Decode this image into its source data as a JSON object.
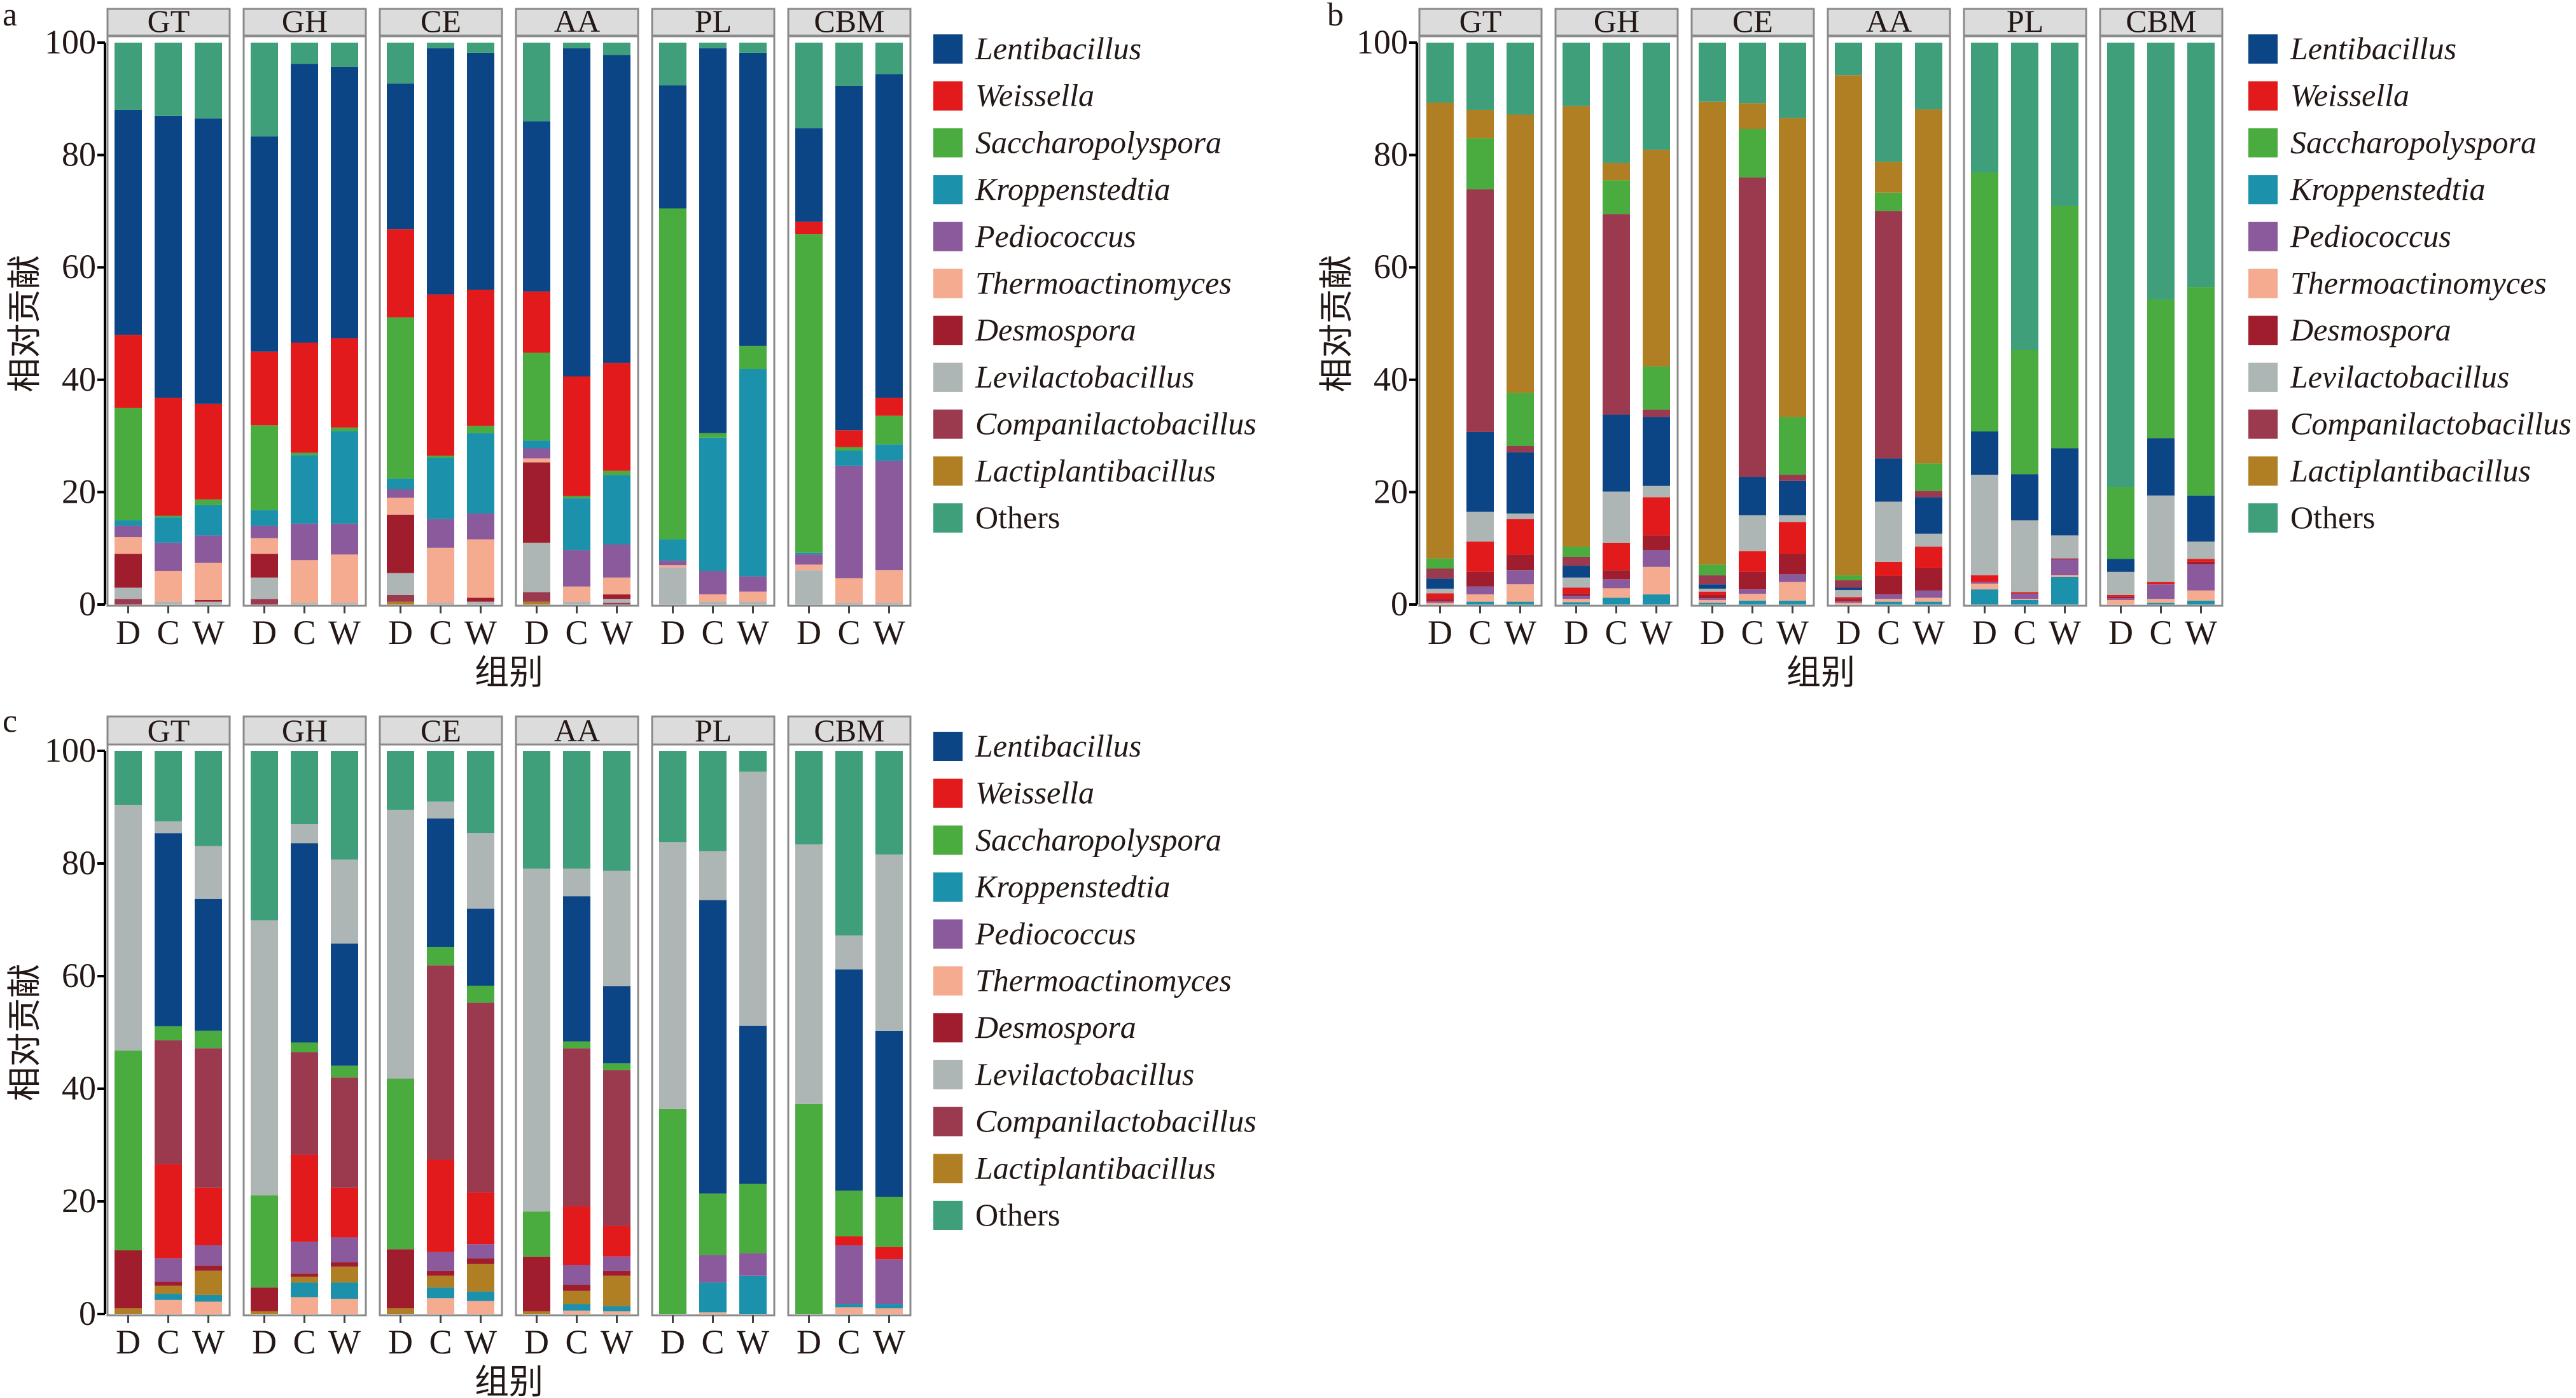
{
  "categories": [
    "Lentibacillus",
    "Weissella",
    "Saccharopolyspora",
    "Kroppenstedtia",
    "Pediococcus",
    "Thermoactinomyces",
    "Desmospora",
    "Levilactobacillus",
    "Companilactobacillus",
    "Lactiplantibacillus",
    "Others"
  ],
  "colors": {
    "Lentibacillus": "#0b4586",
    "Weissella": "#e31a1c",
    "Saccharopolyspora": "#4aab3f",
    "Kroppenstedtia": "#1b91ab",
    "Pediococcus": "#8a5a9c",
    "Thermoactinomyces": "#f5ab8f",
    "Desmospora": "#a01d2d",
    "Levilactobacillus": "#aeb5b5",
    "Companilactobacillus": "#9b3a4f",
    "Lactiplantibacillus": "#b07f23",
    "Others": "#3f9f7a"
  },
  "chart_data": [
    {
      "panel": "a",
      "type": "bar",
      "stacked": true,
      "legend": "right",
      "ylabel": "相对贡献",
      "xlabel": "组别",
      "ylim": [
        0,
        100
      ],
      "yticks": [
        0,
        20,
        40,
        60,
        80,
        100
      ],
      "facets": [
        "GT",
        "GH",
        "CE",
        "AA",
        "PL",
        "CBM"
      ],
      "groups": [
        "D",
        "C",
        "W"
      ],
      "stack_order": [
        "Lactiplantibacillus",
        "Companilactobacillus",
        "Levilactobacillus",
        "Desmospora",
        "Thermoactinomyces",
        "Pediococcus",
        "Kroppenstedtia",
        "Saccharopolyspora",
        "Weissella",
        "Lentibacillus",
        "Others"
      ],
      "values": {
        "GT": {
          "D": [
            0,
            1,
            2,
            6,
            3,
            2,
            1,
            20,
            13,
            40,
            12
          ],
          "C": [
            0,
            0,
            0.5,
            0,
            5.5,
            5,
            4.5,
            0.3,
            21,
            50.2,
            13
          ],
          "W": [
            0,
            0,
            0.5,
            0.3,
            6.6,
            4.9,
            5.4,
            1,
            17,
            50.8,
            13.5
          ]
        },
        "GH": {
          "D": [
            0,
            1,
            3.8,
            4.2,
            2.8,
            2.2,
            2.8,
            15.1,
            13.1,
            38.3,
            16.7
          ],
          "C": [
            0,
            0,
            0.3,
            0,
            7.6,
            6.5,
            12.2,
            0.4,
            19.6,
            49.6,
            3.8
          ],
          "W": [
            0,
            0,
            0.3,
            0,
            8.6,
            5.5,
            16.5,
            0.6,
            15.9,
            48.3,
            4.3
          ]
        },
        "CE": {
          "D": [
            0.5,
            1.2,
            3.9,
            10.4,
            3,
            1.5,
            1.9,
            28.7,
            15.7,
            25.9,
            7.3
          ],
          "C": [
            0,
            0,
            0.3,
            0,
            9.8,
            5.1,
            10.9,
            0.4,
            28.7,
            43.8,
            1
          ],
          "W": [
            0,
            0,
            0.5,
            0.7,
            10.4,
            4.6,
            14.3,
            1.3,
            24.2,
            42.2,
            1.8
          ]
        },
        "AA": {
          "D": [
            0.5,
            1.7,
            8.8,
            14.3,
            0.7,
            1.8,
            1.4,
            15.6,
            10.9,
            30.3,
            14
          ],
          "C": [
            0,
            0,
            0.5,
            0,
            2.7,
            6.5,
            9.2,
            0.4,
            21.3,
            58.4,
            1
          ],
          "W": [
            0,
            0.3,
            0.7,
            0.8,
            3,
            5.9,
            12.3,
            0.8,
            19.2,
            54.8,
            2.2
          ]
        },
        "PL": {
          "D": [
            0,
            0,
            6.6,
            0,
            0.4,
            0.8,
            3.8,
            58.9,
            0,
            21.9,
            7.6
          ],
          "C": [
            0,
            0,
            0.5,
            0,
            1.3,
            4.2,
            23.7,
            0.8,
            0,
            68.5,
            1
          ],
          "W": [
            0,
            0,
            0.5,
            0,
            1.8,
            2.7,
            36.9,
            4.1,
            0,
            52.2,
            1.8
          ]
        },
        "CBM": {
          "D": [
            0,
            0,
            6.1,
            0,
            1,
            1.8,
            0.3,
            56.7,
            2.2,
            16.7,
            15.2
          ],
          "C": [
            0,
            0,
            0.3,
            0,
            4.4,
            20,
            2.7,
            0.6,
            3,
            61.3,
            7.7
          ],
          "W": [
            0,
            0,
            0.3,
            0,
            5.8,
            19.5,
            2.9,
            5.1,
            3.2,
            57.6,
            5.6
          ]
        }
      }
    },
    {
      "panel": "b",
      "type": "bar",
      "stacked": true,
      "legend": "right",
      "ylabel": "相对贡献",
      "xlabel": "组别",
      "ylim": [
        0,
        100
      ],
      "yticks": [
        0,
        20,
        40,
        60,
        80,
        100
      ],
      "facets": [
        "GT",
        "GH",
        "CE",
        "AA",
        "PL",
        "CBM"
      ],
      "groups": [
        "D",
        "C",
        "W"
      ],
      "stack_order": [
        "Kroppenstedtia",
        "Thermoactinomyces",
        "Pediococcus",
        "Desmospora",
        "Weissella",
        "Levilactobacillus",
        "Lentibacillus",
        "Companilactobacillus",
        "Saccharopolyspora",
        "Lactiplantibacillus",
        "Others"
      ],
      "values": {
        "GT": {
          "D": [
            0,
            0.3,
            0.3,
            0.4,
            1,
            0.8,
            1.8,
            1.8,
            1.8,
            81.1,
            10.7
          ],
          "C": [
            0.5,
            1.3,
            1.4,
            2.6,
            5.4,
            5.3,
            14.2,
            43.2,
            9.1,
            5,
            12
          ],
          "W": [
            0.5,
            3.1,
            2.5,
            2.8,
            6.3,
            1,
            10.9,
            1.1,
            9.5,
            49.5,
            12.8
          ]
        },
        "GH": {
          "D": [
            0.4,
            0.6,
            0.5,
            0.5,
            1,
            1.8,
            2.1,
            1.6,
            1.8,
            78.4,
            11.3
          ],
          "C": [
            1.2,
            1.7,
            1.6,
            1.6,
            4.9,
            9.1,
            13.7,
            35.7,
            6,
            3.1,
            21.4
          ],
          "W": [
            1.8,
            4.9,
            3,
            2.6,
            6.8,
            2,
            12.3,
            1.3,
            7.7,
            38.5,
            19.1
          ]
        },
        "CE": {
          "D": [
            0.3,
            0.5,
            0.3,
            0.6,
            0.6,
            0.5,
            0.8,
            1.6,
            1.9,
            82.4,
            10.5
          ],
          "C": [
            0.7,
            1.2,
            0.8,
            3.1,
            3.7,
            6.4,
            6.8,
            53.3,
            8.6,
            4.6,
            10.8
          ],
          "W": [
            0.7,
            3.3,
            1.4,
            3.6,
            5.7,
            1.2,
            6.1,
            1.1,
            10.3,
            53.2,
            13.4
          ]
        },
        "AA": {
          "D": [
            0,
            0.3,
            0.3,
            0.4,
            0.3,
            1.3,
            0.4,
            1.3,
            0.9,
            89,
            5.8
          ],
          "C": [
            0.5,
            0.5,
            0.8,
            3.3,
            2.5,
            10.7,
            7.7,
            44,
            3.3,
            5.5,
            21.2
          ],
          "W": [
            0.5,
            0.7,
            1.3,
            4,
            3.8,
            2.3,
            6.5,
            1.1,
            4.9,
            63,
            11.9
          ]
        },
        "PL": {
          "D": [
            2.7,
            1,
            0.3,
            0,
            1.2,
            17.9,
            7.7,
            0,
            46.1,
            0,
            23.1
          ],
          "C": [
            0.8,
            0.2,
            0.9,
            0.1,
            0.2,
            12.8,
            8.2,
            0,
            22.1,
            0,
            54.7
          ],
          "W": [
            4.9,
            0.3,
            2.8,
            0.2,
            0,
            4.1,
            15.5,
            0,
            43.1,
            0,
            29.1
          ]
        },
        "CBM": {
          "D": [
            0,
            0.8,
            0.3,
            0.3,
            0.3,
            4.1,
            2.3,
            0,
            12.8,
            0,
            79.1
          ],
          "C": [
            0.3,
            0.7,
            2.6,
            0,
            0.4,
            15.4,
            10.2,
            0,
            24.7,
            0,
            45.7
          ],
          "W": [
            0.7,
            1.8,
            4.7,
            0.4,
            0.5,
            3.1,
            8.2,
            0,
            37.1,
            0,
            43.5
          ]
        }
      }
    },
    {
      "panel": "c",
      "type": "bar",
      "stacked": true,
      "legend": "right",
      "ylabel": "相对贡献",
      "xlabel": "组别",
      "ylim": [
        0,
        100
      ],
      "yticks": [
        0,
        20,
        40,
        60,
        80,
        100
      ],
      "facets": [
        "GT",
        "GH",
        "CE",
        "AA",
        "PL",
        "CBM"
      ],
      "groups": [
        "D",
        "C",
        "W"
      ],
      "stack_order": [
        "Thermoactinomyces",
        "Kroppenstedtia",
        "Lactiplantibacillus",
        "Desmospora",
        "Pediococcus",
        "Weissella",
        "Companilactobacillus",
        "Saccharopolyspora",
        "Lentibacillus",
        "Levilactobacillus",
        "Others"
      ],
      "values": {
        "GT": {
          "D": [
            0,
            0,
            1,
            10.3,
            0,
            0,
            0,
            35.5,
            0,
            43.6,
            9.6
          ],
          "C": [
            2.5,
            1.1,
            1.4,
            0.7,
            4.2,
            16.7,
            22,
            2.5,
            34.3,
            2.1,
            12.5
          ],
          "W": [
            2.2,
            1.2,
            4.3,
            0.9,
            3.6,
            10.2,
            24.8,
            3.1,
            23.4,
            9.4,
            16.9
          ]
        },
        "GH": {
          "D": [
            0,
            0,
            0.5,
            4.2,
            0,
            0,
            0,
            16.4,
            0,
            48.8,
            30.1
          ],
          "C": [
            3,
            2.6,
            1,
            0.6,
            5.6,
            15.5,
            18.2,
            1.7,
            35.4,
            3.4,
            13
          ],
          "W": [
            2.7,
            2.9,
            2.8,
            0.8,
            4.4,
            8.8,
            19.6,
            2.1,
            21.7,
            14.9,
            19.3
          ]
        },
        "CE": {
          "D": [
            0,
            0,
            1,
            10.5,
            0,
            0,
            0,
            30.3,
            0,
            47.7,
            10.5
          ],
          "C": [
            2.8,
            1.9,
            2.1,
            0.9,
            3.3,
            16.4,
            34.5,
            3.3,
            22.8,
            3,
            9
          ],
          "W": [
            2.3,
            1.7,
            4.9,
            1,
            2.5,
            9.2,
            33.7,
            3,
            13.7,
            13.4,
            14.6
          ]
        },
        "AA": {
          "D": [
            0,
            0,
            0.5,
            9.7,
            0,
            0,
            0,
            8,
            0,
            60.9,
            20.9
          ],
          "C": [
            0.6,
            1.2,
            2.3,
            1.1,
            3.5,
            10.4,
            28.1,
            1.2,
            25.8,
            4.9,
            20.9
          ],
          "W": [
            0.5,
            0.9,
            5.4,
            0.9,
            2.5,
            5.4,
            27.7,
            1.2,
            13.7,
            20.5,
            21.3
          ]
        },
        "PL": {
          "D": [
            0,
            0,
            0,
            0,
            0,
            0,
            0,
            36.4,
            0,
            47.4,
            16.2
          ],
          "C": [
            0.3,
            5.3,
            0,
            0,
            4.9,
            0,
            0,
            10.9,
            52.1,
            8.7,
            17.8
          ],
          "W": [
            0,
            6.8,
            0,
            0,
            4,
            0,
            0,
            12.3,
            28.1,
            45.1,
            3.7
          ]
        },
        "CBM": {
          "D": [
            0,
            0,
            0,
            0,
            0,
            0,
            0,
            37.3,
            0,
            46.1,
            16.6
          ],
          "C": [
            1.2,
            0.6,
            0,
            0,
            10.4,
            1.6,
            0,
            8.1,
            39.3,
            6,
            32.8
          ],
          "W": [
            1,
            0.8,
            0,
            0,
            7.9,
            2.2,
            0,
            8.9,
            29.5,
            31.3,
            18.4
          ]
        }
      }
    }
  ]
}
